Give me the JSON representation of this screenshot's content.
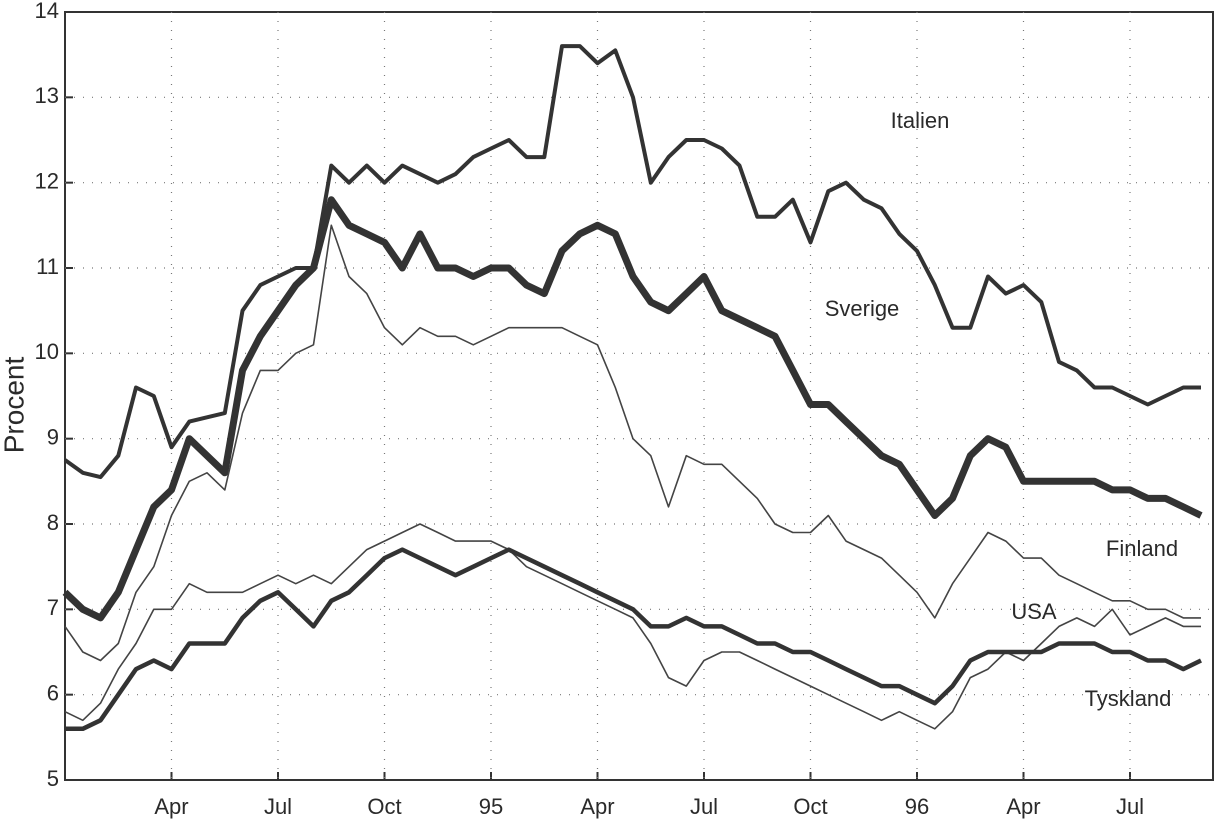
{
  "chart_data": {
    "type": "line",
    "ylabel": "Procent",
    "categories": [
      null,
      null,
      null,
      null,
      null,
      null,
      "Apr",
      null,
      null,
      null,
      null,
      null,
      "Jul",
      null,
      null,
      null,
      null,
      null,
      "Oct",
      null,
      null,
      null,
      null,
      null,
      "95",
      null,
      null,
      null,
      null,
      null,
      "Apr",
      null,
      null,
      null,
      null,
      null,
      "Jul",
      null,
      null,
      null,
      null,
      null,
      "Oct",
      null,
      null,
      null,
      null,
      null,
      "96",
      null,
      null,
      null,
      null,
      null,
      "Apr",
      null,
      null,
      null,
      null,
      null,
      "Jul",
      null,
      null,
      null,
      null
    ],
    "series": [
      {
        "name": "Italien",
        "color": "#333333",
        "values": [
          8.75,
          8.6,
          8.55,
          8.8,
          9.6,
          9.5,
          8.9,
          9.2,
          9.25,
          9.3,
          10.5,
          10.8,
          10.9,
          11.0,
          11.0,
          12.2,
          12.0,
          12.2,
          12.0,
          12.2,
          12.1,
          12.0,
          12.1,
          12.3,
          12.4,
          12.5,
          12.3,
          12.3,
          13.6,
          13.6,
          13.4,
          13.55,
          13.0,
          12.0,
          12.3,
          12.5,
          12.5,
          12.4,
          12.2,
          11.6,
          11.6,
          11.8,
          11.3,
          11.9,
          12.0,
          11.8,
          11.7,
          11.4,
          11.2,
          10.8,
          10.3,
          10.3,
          10.9,
          10.7,
          10.8,
          10.6,
          9.9,
          9.8,
          9.6,
          9.6,
          9.5,
          9.4,
          9.5,
          9.6,
          9.6
        ]
      },
      {
        "name": "Sverige",
        "color": "#333333",
        "values": [
          7.2,
          7.0,
          6.9,
          7.2,
          7.7,
          8.2,
          8.4,
          9.0,
          8.8,
          8.6,
          9.8,
          10.2,
          10.5,
          10.8,
          11.0,
          11.8,
          11.5,
          11.4,
          11.3,
          11.0,
          11.4,
          11.0,
          11.0,
          10.9,
          11.0,
          11.0,
          10.8,
          10.7,
          11.2,
          11.4,
          11.5,
          11.4,
          10.9,
          10.6,
          10.5,
          10.7,
          10.9,
          10.5,
          10.4,
          10.3,
          10.2,
          9.8,
          9.4,
          9.4,
          9.2,
          9.0,
          8.8,
          8.7,
          8.4,
          8.1,
          8.3,
          8.8,
          9.0,
          8.9,
          8.5,
          8.5,
          8.5,
          8.5,
          8.5,
          8.4,
          8.4,
          8.3,
          8.3,
          8.2,
          8.1
        ]
      },
      {
        "name": "Finland",
        "color": "#444444",
        "values": [
          6.8,
          6.5,
          6.4,
          6.6,
          7.2,
          7.5,
          8.1,
          8.5,
          8.6,
          8.4,
          9.3,
          9.8,
          9.8,
          10.0,
          10.1,
          11.5,
          10.9,
          10.7,
          10.3,
          10.1,
          10.3,
          10.2,
          10.2,
          10.1,
          10.2,
          10.3,
          10.3,
          10.3,
          10.3,
          10.2,
          10.1,
          9.6,
          9.0,
          8.8,
          8.2,
          8.8,
          8.7,
          8.7,
          8.5,
          8.3,
          8.0,
          7.9,
          7.9,
          8.1,
          7.8,
          7.7,
          7.6,
          7.4,
          7.2,
          6.9,
          7.3,
          7.6,
          7.9,
          7.8,
          7.6,
          7.6,
          7.4,
          7.3,
          7.2,
          7.1,
          7.1,
          7.0,
          7.0,
          6.9,
          6.9
        ]
      },
      {
        "name": "USA",
        "color": "#444444",
        "values": [
          5.8,
          5.7,
          5.9,
          6.3,
          6.6,
          7.0,
          7.0,
          7.3,
          7.2,
          7.2,
          7.2,
          7.3,
          7.4,
          7.3,
          7.4,
          7.3,
          7.5,
          7.7,
          7.8,
          7.9,
          8.0,
          7.9,
          7.8,
          7.8,
          7.8,
          7.7,
          7.5,
          7.4,
          7.3,
          7.2,
          7.1,
          7.0,
          6.9,
          6.6,
          6.2,
          6.1,
          6.4,
          6.5,
          6.5,
          6.4,
          6.3,
          6.2,
          6.1,
          6.0,
          5.9,
          5.8,
          5.7,
          5.8,
          5.7,
          5.6,
          5.8,
          6.2,
          6.3,
          6.5,
          6.4,
          6.6,
          6.8,
          6.9,
          6.8,
          7.0,
          6.7,
          6.8,
          6.9,
          6.8,
          6.8
        ]
      },
      {
        "name": "Tyskland",
        "color": "#333333",
        "values": [
          5.6,
          5.6,
          5.7,
          6.0,
          6.3,
          6.4,
          6.3,
          6.6,
          6.6,
          6.6,
          6.9,
          7.1,
          7.2,
          7.0,
          6.8,
          7.1,
          7.2,
          7.4,
          7.6,
          7.7,
          7.6,
          7.5,
          7.4,
          7.5,
          7.6,
          7.7,
          7.6,
          7.5,
          7.4,
          7.3,
          7.2,
          7.1,
          7.0,
          6.8,
          6.8,
          6.9,
          6.8,
          6.8,
          6.7,
          6.6,
          6.6,
          6.5,
          6.5,
          6.4,
          6.3,
          6.2,
          6.1,
          6.1,
          6.0,
          5.9,
          6.1,
          6.4,
          6.5,
          6.5,
          6.5,
          6.5,
          6.6,
          6.6,
          6.6,
          6.5,
          6.5,
          6.4,
          6.4,
          6.3,
          6.4
        ]
      }
    ],
    "ylim": [
      5,
      14
    ],
    "yticks": [
      5,
      6,
      7,
      8,
      9,
      10,
      11,
      12,
      13,
      14
    ],
    "grid": true
  }
}
